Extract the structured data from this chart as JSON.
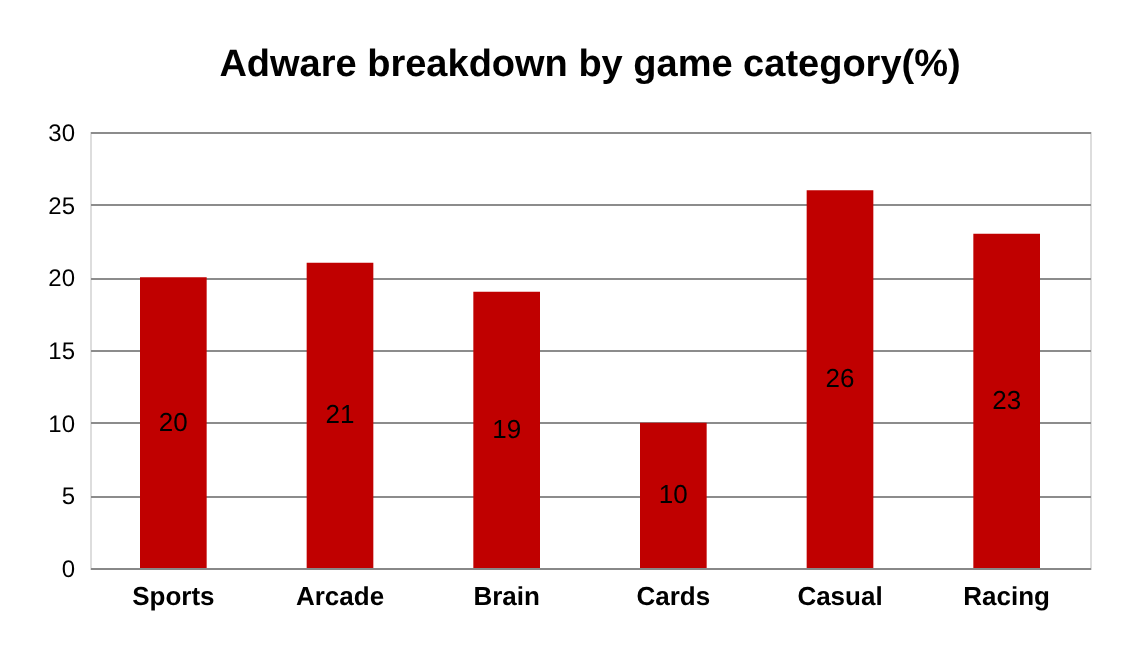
{
  "chart_data": {
    "type": "bar",
    "title": "Adware breakdown by game category(%)",
    "categories": [
      "Sports",
      "Arcade",
      "Brain",
      "Cards",
      "Casual",
      "Racing"
    ],
    "values": [
      20,
      21,
      19,
      10,
      26,
      23
    ],
    "color": "#c00000",
    "ylim": [
      0,
      30
    ],
    "yticks": [
      0,
      5,
      10,
      15,
      20,
      25,
      30
    ],
    "grid": "y",
    "data_labels": true
  }
}
